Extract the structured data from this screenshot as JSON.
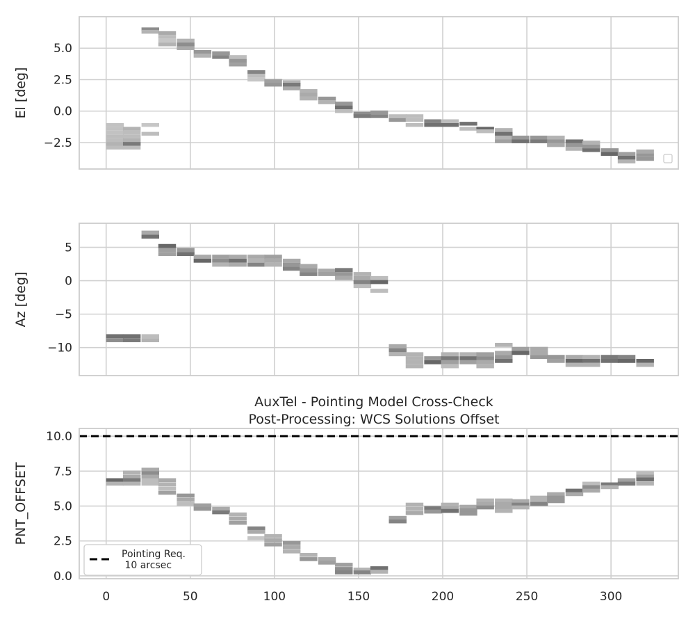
{
  "chart_data": [
    {
      "type": "heatmap",
      "ylabel": "El [deg]",
      "xlim": [
        -16,
        340
      ],
      "ylim": [
        -4.6,
        7.5
      ],
      "xticks": [
        0,
        50,
        100,
        150,
        200,
        250,
        300
      ],
      "yticks": [
        -2.5,
        0.0,
        2.5,
        5.0
      ],
      "ytick_labels": [
        "−2.5",
        "0.0",
        "2.5",
        "5.0"
      ],
      "show_xtick_labels": false,
      "grid": true,
      "legend": {
        "placement": "lower-right",
        "entries": []
      },
      "bin_width": 10.5,
      "cell_height": 0.3,
      "cells": [
        [
          0,
          -1.1,
          0.32
        ],
        [
          0,
          -1.4,
          0.32
        ],
        [
          0,
          -1.7,
          0.32
        ],
        [
          0,
          -2.0,
          0.35
        ],
        [
          0,
          -2.3,
          0.35
        ],
        [
          0,
          -2.6,
          0.4
        ],
        [
          0,
          -2.9,
          0.35
        ],
        [
          10,
          -1.4,
          0.4
        ],
        [
          10,
          -1.7,
          0.35
        ],
        [
          10,
          -2.0,
          0.35
        ],
        [
          10,
          -2.3,
          0.4
        ],
        [
          10,
          -2.6,
          0.7
        ],
        [
          10,
          -2.9,
          0.35
        ],
        [
          21,
          -1.1,
          0.3
        ],
        [
          21,
          -1.8,
          0.35
        ],
        [
          21,
          6.5,
          0.6
        ],
        [
          21,
          6.3,
          0.4
        ],
        [
          31,
          6.2,
          0.45
        ],
        [
          31,
          5.9,
          0.35
        ],
        [
          31,
          5.6,
          0.3
        ],
        [
          31,
          5.3,
          0.4
        ],
        [
          42,
          5.6,
          0.4
        ],
        [
          42,
          5.3,
          0.6
        ],
        [
          42,
          5.0,
          0.45
        ],
        [
          52,
          4.7,
          0.55
        ],
        [
          52,
          4.4,
          0.4
        ],
        [
          63,
          4.6,
          0.55
        ],
        [
          63,
          4.3,
          0.65
        ],
        [
          73,
          4.3,
          0.35
        ],
        [
          73,
          4.0,
          0.55
        ],
        [
          73,
          3.7,
          0.5
        ],
        [
          84,
          3.1,
          0.65
        ],
        [
          84,
          2.8,
          0.35
        ],
        [
          84,
          2.5,
          0.3
        ],
        [
          94,
          2.4,
          0.5
        ],
        [
          94,
          2.1,
          0.55
        ],
        [
          105,
          2.3,
          0.4
        ],
        [
          105,
          2.1,
          0.7
        ],
        [
          105,
          1.8,
          0.45
        ],
        [
          115,
          1.6,
          0.4
        ],
        [
          115,
          1.3,
          0.45
        ],
        [
          115,
          1.0,
          0.4
        ],
        [
          126,
          1.0,
          0.55
        ],
        [
          126,
          0.7,
          0.4
        ],
        [
          136,
          0.6,
          0.55
        ],
        [
          136,
          0.3,
          0.75
        ],
        [
          136,
          0.0,
          0.35
        ],
        [
          147,
          -0.2,
          0.6
        ],
        [
          147,
          -0.4,
          0.7
        ],
        [
          157,
          -0.1,
          0.55
        ],
        [
          157,
          -0.4,
          0.65
        ],
        [
          168,
          -0.4,
          0.35
        ],
        [
          168,
          -0.7,
          0.55
        ],
        [
          178,
          -0.4,
          0.35
        ],
        [
          178,
          -0.7,
          0.35
        ],
        [
          178,
          -1.1,
          0.35
        ],
        [
          189,
          -0.8,
          0.65
        ],
        [
          189,
          -1.1,
          0.75
        ],
        [
          199,
          -0.8,
          0.35
        ],
        [
          199,
          -1.1,
          0.75
        ],
        [
          210,
          -1.0,
          0.75
        ],
        [
          210,
          -1.4,
          0.35
        ],
        [
          220,
          -1.4,
          0.8
        ],
        [
          220,
          -1.6,
          0.35
        ],
        [
          231,
          -1.5,
          0.4
        ],
        [
          231,
          -1.8,
          0.75
        ],
        [
          231,
          -2.1,
          0.4
        ],
        [
          231,
          -2.4,
          0.5
        ],
        [
          241,
          -2.1,
          0.55
        ],
        [
          241,
          -2.4,
          0.75
        ],
        [
          252,
          -2.1,
          0.55
        ],
        [
          252,
          -2.4,
          0.7
        ],
        [
          262,
          -2.1,
          0.4
        ],
        [
          262,
          -2.4,
          0.55
        ],
        [
          262,
          -2.7,
          0.45
        ],
        [
          273,
          -2.4,
          0.75
        ],
        [
          273,
          -2.7,
          0.55
        ],
        [
          273,
          -3.0,
          0.4
        ],
        [
          283,
          -2.5,
          0.4
        ],
        [
          283,
          -2.8,
          0.55
        ],
        [
          283,
          -3.1,
          0.75
        ],
        [
          294,
          -3.1,
          0.55
        ],
        [
          294,
          -3.4,
          0.8
        ],
        [
          304,
          -3.4,
          0.5
        ],
        [
          304,
          -3.7,
          0.75
        ],
        [
          304,
          -4.0,
          0.4
        ],
        [
          315,
          -3.2,
          0.45
        ],
        [
          315,
          -3.5,
          0.55
        ],
        [
          315,
          -3.8,
          0.55
        ]
      ]
    },
    {
      "type": "heatmap",
      "ylabel": "Az [deg]",
      "xlim": [
        -16,
        340
      ],
      "ylim": [
        -14.2,
        8.6
      ],
      "xticks": [
        0,
        50,
        100,
        150,
        200,
        250,
        300
      ],
      "yticks": [
        -10,
        -5,
        0,
        5
      ],
      "ytick_labels": [
        "−10",
        "−5",
        "0",
        "5"
      ],
      "show_xtick_labels": false,
      "grid": true,
      "bin_width": 10.5,
      "cell_height": 0.6,
      "cells": [
        [
          0,
          -8.3,
          0.75
        ],
        [
          0,
          -8.9,
          0.6
        ],
        [
          10,
          -8.3,
          0.75
        ],
        [
          10,
          -8.9,
          0.7
        ],
        [
          21,
          -8.3,
          0.35
        ],
        [
          21,
          -8.9,
          0.4
        ],
        [
          21,
          7.2,
          0.45
        ],
        [
          21,
          6.6,
          0.75
        ],
        [
          31,
          5.2,
          0.8
        ],
        [
          31,
          4.6,
          0.5
        ],
        [
          31,
          4.0,
          0.5
        ],
        [
          42,
          4.6,
          0.55
        ],
        [
          42,
          4.0,
          0.75
        ],
        [
          52,
          3.6,
          0.45
        ],
        [
          52,
          3.0,
          0.8
        ],
        [
          63,
          3.6,
          0.5
        ],
        [
          63,
          3.0,
          0.6
        ],
        [
          63,
          2.4,
          0.4
        ],
        [
          73,
          3.6,
          0.45
        ],
        [
          73,
          3.0,
          0.75
        ],
        [
          73,
          2.4,
          0.45
        ],
        [
          84,
          3.6,
          0.45
        ],
        [
          84,
          3.0,
          0.4
        ],
        [
          84,
          2.4,
          0.65
        ],
        [
          94,
          3.6,
          0.5
        ],
        [
          94,
          3.0,
          0.45
        ],
        [
          94,
          2.4,
          0.4
        ],
        [
          105,
          3.0,
          0.45
        ],
        [
          105,
          2.4,
          0.55
        ],
        [
          105,
          1.8,
          0.65
        ],
        [
          115,
          2.2,
          0.45
        ],
        [
          115,
          1.6,
          0.55
        ],
        [
          115,
          1.0,
          0.65
        ],
        [
          126,
          1.5,
          0.45
        ],
        [
          126,
          1.0,
          0.5
        ],
        [
          136,
          1.6,
          0.7
        ],
        [
          136,
          1.0,
          0.55
        ],
        [
          136,
          0.4,
          0.45
        ],
        [
          147,
          1.0,
          0.4
        ],
        [
          147,
          0.4,
          0.45
        ],
        [
          147,
          -0.2,
          0.65
        ],
        [
          147,
          -0.8,
          0.35
        ],
        [
          157,
          0.4,
          0.35
        ],
        [
          157,
          -0.2,
          0.8
        ],
        [
          157,
          -1.5,
          0.35
        ],
        [
          168,
          -9.8,
          0.45
        ],
        [
          168,
          -10.4,
          0.65
        ],
        [
          168,
          -11.0,
          0.4
        ],
        [
          178,
          -11.0,
          0.4
        ],
        [
          178,
          -11.6,
          0.4
        ],
        [
          178,
          -12.2,
          0.4
        ],
        [
          178,
          -12.8,
          0.4
        ],
        [
          189,
          -11.6,
          0.55
        ],
        [
          189,
          -12.2,
          0.8
        ],
        [
          199,
          -11.0,
          0.4
        ],
        [
          199,
          -11.6,
          0.7
        ],
        [
          199,
          -12.2,
          0.5
        ],
        [
          199,
          -12.8,
          0.35
        ],
        [
          210,
          -11.0,
          0.4
        ],
        [
          210,
          -11.6,
          0.75
        ],
        [
          210,
          -12.2,
          0.5
        ],
        [
          220,
          -11.0,
          0.5
        ],
        [
          220,
          -11.6,
          0.6
        ],
        [
          220,
          -12.2,
          0.45
        ],
        [
          220,
          -12.8,
          0.4
        ],
        [
          231,
          -9.6,
          0.4
        ],
        [
          231,
          -10.8,
          0.45
        ],
        [
          231,
          -11.4,
          0.55
        ],
        [
          231,
          -12.0,
          0.75
        ],
        [
          241,
          -10.2,
          0.5
        ],
        [
          241,
          -10.8,
          0.8
        ],
        [
          252,
          -10.2,
          0.45
        ],
        [
          252,
          -10.8,
          0.45
        ],
        [
          252,
          -11.4,
          0.55
        ],
        [
          262,
          -11.4,
          0.55
        ],
        [
          262,
          -12.0,
          0.5
        ],
        [
          273,
          -11.4,
          0.45
        ],
        [
          273,
          -12.0,
          0.8
        ],
        [
          273,
          -12.6,
          0.4
        ],
        [
          283,
          -11.4,
          0.4
        ],
        [
          283,
          -12.0,
          0.75
        ],
        [
          283,
          -12.6,
          0.4
        ],
        [
          294,
          -11.4,
          0.7
        ],
        [
          294,
          -12.0,
          0.75
        ],
        [
          304,
          -11.4,
          0.65
        ],
        [
          304,
          -12.0,
          0.8
        ],
        [
          315,
          -12.0,
          0.8
        ],
        [
          315,
          -12.6,
          0.4
        ]
      ]
    },
    {
      "type": "heatmap",
      "title": "AuxTel - Pointing Model Cross-Check",
      "subtitle": "Post-Processing: WCS Solutions Offset",
      "ylabel": "PNT_OFFSET",
      "xlim": [
        -16,
        340
      ],
      "ylim": [
        -0.2,
        10.55
      ],
      "xticks": [
        0,
        50,
        100,
        150,
        200,
        250,
        300
      ],
      "xtick_labels": [
        "0",
        "50",
        "100",
        "150",
        "200",
        "250",
        "300"
      ],
      "yticks": [
        0.0,
        2.5,
        5.0,
        7.5,
        10.0
      ],
      "ytick_labels": [
        "0.0",
        "2.5",
        "5.0",
        "7.5",
        "10.0"
      ],
      "show_xtick_labels": true,
      "grid": true,
      "requirement_line": {
        "y": 10.0,
        "label": "Pointing Req.\n 10 arcsec",
        "color": "#000000",
        "style": "dashed"
      },
      "legend": {
        "placement": "lower-left"
      },
      "bin_width": 10.5,
      "cell_height": 0.28,
      "cells": [
        [
          0,
          6.85,
          0.8
        ],
        [
          0,
          6.6,
          0.4
        ],
        [
          10,
          7.4,
          0.4
        ],
        [
          10,
          7.1,
          0.45
        ],
        [
          10,
          6.85,
          0.7
        ],
        [
          10,
          6.6,
          0.4
        ],
        [
          21,
          7.6,
          0.45
        ],
        [
          21,
          7.35,
          0.6
        ],
        [
          21,
          7.1,
          0.45
        ],
        [
          21,
          6.85,
          0.35
        ],
        [
          21,
          6.6,
          0.35
        ],
        [
          31,
          6.85,
          0.45
        ],
        [
          31,
          6.55,
          0.4
        ],
        [
          31,
          6.25,
          0.35
        ],
        [
          31,
          5.95,
          0.5
        ],
        [
          42,
          5.75,
          0.55
        ],
        [
          42,
          5.45,
          0.45
        ],
        [
          42,
          5.15,
          0.35
        ],
        [
          52,
          5.05,
          0.5
        ],
        [
          52,
          4.8,
          0.55
        ],
        [
          63,
          4.8,
          0.45
        ],
        [
          63,
          4.55,
          0.7
        ],
        [
          73,
          4.4,
          0.4
        ],
        [
          73,
          4.1,
          0.45
        ],
        [
          73,
          3.8,
          0.5
        ],
        [
          84,
          3.4,
          0.65
        ],
        [
          84,
          3.15,
          0.45
        ],
        [
          84,
          2.7,
          0.3
        ],
        [
          94,
          2.85,
          0.4
        ],
        [
          94,
          2.55,
          0.45
        ],
        [
          94,
          2.25,
          0.5
        ],
        [
          105,
          2.35,
          0.55
        ],
        [
          105,
          2.05,
          0.45
        ],
        [
          105,
          1.75,
          0.4
        ],
        [
          115,
          1.5,
          0.4
        ],
        [
          115,
          1.2,
          0.55
        ],
        [
          126,
          1.2,
          0.45
        ],
        [
          126,
          0.95,
          0.5
        ],
        [
          136,
          0.8,
          0.5
        ],
        [
          136,
          0.5,
          0.6
        ],
        [
          136,
          0.25,
          0.65
        ],
        [
          147,
          0.45,
          0.4
        ],
        [
          147,
          0.25,
          0.65
        ],
        [
          157,
          0.55,
          0.75
        ],
        [
          157,
          0.3,
          0.4
        ],
        [
          168,
          4.15,
          0.5
        ],
        [
          168,
          3.9,
          0.65
        ],
        [
          178,
          5.1,
          0.4
        ],
        [
          178,
          4.8,
          0.4
        ],
        [
          178,
          4.5,
          0.45
        ],
        [
          189,
          4.85,
          0.7
        ],
        [
          189,
          4.6,
          0.55
        ],
        [
          199,
          5.1,
          0.4
        ],
        [
          199,
          4.85,
          0.45
        ],
        [
          199,
          4.65,
          0.75
        ],
        [
          210,
          4.95,
          0.45
        ],
        [
          210,
          4.7,
          0.55
        ],
        [
          210,
          4.45,
          0.55
        ],
        [
          220,
          5.4,
          0.4
        ],
        [
          220,
          5.15,
          0.45
        ],
        [
          220,
          4.9,
          0.6
        ],
        [
          231,
          5.4,
          0.4
        ],
        [
          231,
          5.15,
          0.45
        ],
        [
          231,
          4.9,
          0.45
        ],
        [
          231,
          4.65,
          0.4
        ],
        [
          241,
          5.35,
          0.45
        ],
        [
          241,
          5.1,
          0.65
        ],
        [
          241,
          4.9,
          0.4
        ],
        [
          252,
          5.6,
          0.4
        ],
        [
          252,
          5.35,
          0.4
        ],
        [
          252,
          5.15,
          0.65
        ],
        [
          262,
          5.85,
          0.45
        ],
        [
          262,
          5.6,
          0.55
        ],
        [
          262,
          5.35,
          0.55
        ],
        [
          273,
          6.1,
          0.75
        ],
        [
          273,
          5.85,
          0.45
        ],
        [
          283,
          6.6,
          0.35
        ],
        [
          283,
          6.35,
          0.6
        ],
        [
          283,
          6.1,
          0.45
        ],
        [
          294,
          6.55,
          0.7
        ],
        [
          294,
          6.35,
          0.4
        ],
        [
          304,
          6.85,
          0.5
        ],
        [
          304,
          6.6,
          0.7
        ],
        [
          315,
          7.35,
          0.35
        ],
        [
          315,
          7.1,
          0.5
        ],
        [
          315,
          6.9,
          0.75
        ],
        [
          315,
          6.6,
          0.4
        ]
      ]
    }
  ]
}
